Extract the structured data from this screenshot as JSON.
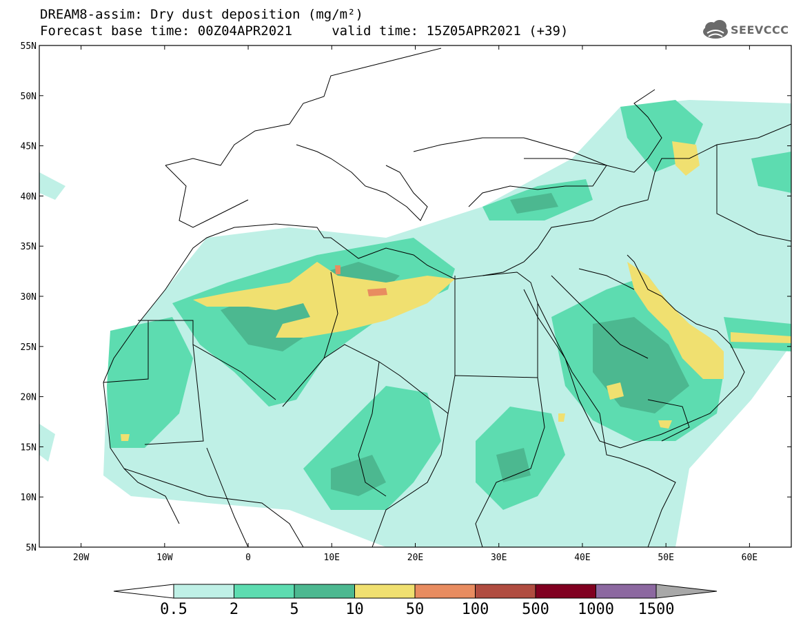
{
  "header": {
    "title_line1": "DREAM8-assim: Dry dust deposition (mg/m²)",
    "title_line2": "Forecast base time: 00Z04APR2021     valid time: 15Z05APR2021 (+39)",
    "logo_text": "SEEVCCC"
  },
  "map": {
    "lat_labels": [
      "55N",
      "50N",
      "45N",
      "40N",
      "35N",
      "30N",
      "25N",
      "20N",
      "15N",
      "10N",
      "5N"
    ],
    "lon_labels": [
      "20W",
      "10W",
      "0",
      "10E",
      "20E",
      "30E",
      "40E",
      "50E",
      "60E"
    ],
    "lat_range": [
      5,
      55
    ],
    "lon_range": [
      -25,
      65
    ],
    "grid": false
  },
  "colorbar": {
    "labels": [
      "0.5",
      "2",
      "5",
      "10",
      "50",
      "100",
      "500",
      "1000",
      "1500"
    ],
    "colors": [
      "#bff0e6",
      "#5ddcb0",
      "#4cb890",
      "#f0e070",
      "#e88c60",
      "#b04c40",
      "#800020",
      "#8c68a0",
      "#a8a8a8"
    ],
    "under_color": "#ffffff",
    "over_color": "#a8a8a8"
  },
  "colors": {
    "coast": "#000000",
    "light": "#bff0e6",
    "mid": "#5ddcb0",
    "dark": "#4cb890",
    "yellow": "#f0e070",
    "orange": "#e88c60"
  }
}
